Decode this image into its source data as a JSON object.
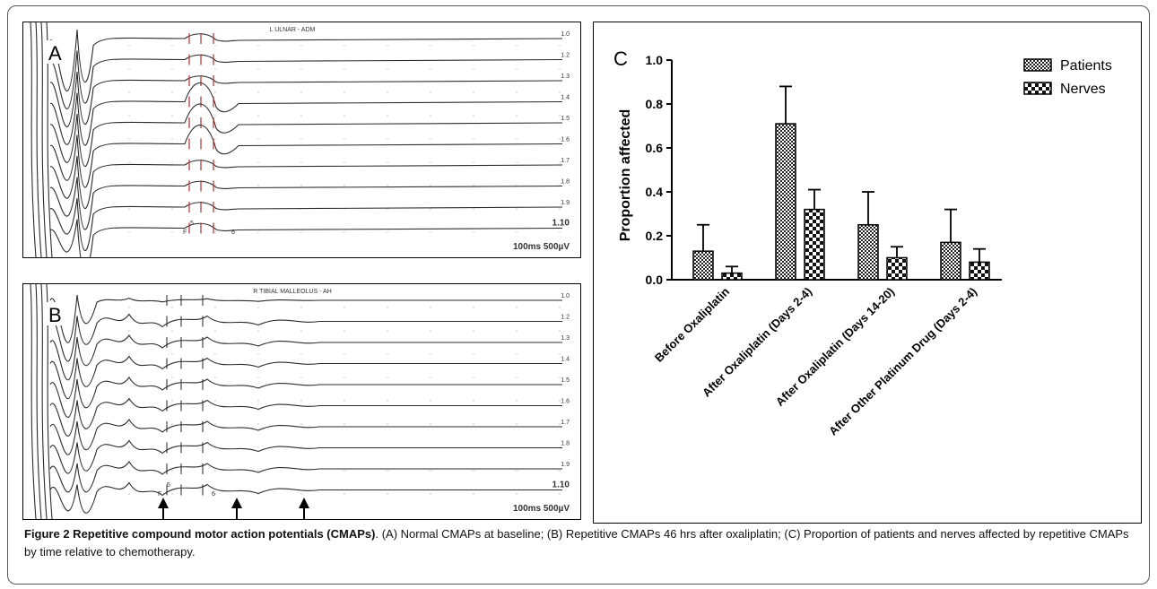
{
  "panel_a": {
    "letter": "A",
    "header": "L ULNAR - ADM",
    "trace_labels": [
      "1.0",
      "1.2",
      "1.3",
      "1.4",
      "1.5",
      "1.6",
      "1.7",
      "1.8",
      "1.9",
      "1.10"
    ],
    "scale": "100ms 500µV",
    "marker_labels": [
      "F",
      "5",
      "6"
    ]
  },
  "panel_b": {
    "letter": "B",
    "header": "R TIBIAL MALLEOLUS - AH",
    "trace_labels": [
      "1.0",
      "1.2",
      "1.3",
      "1.4",
      "1.5",
      "1.6",
      "1.7",
      "1.8",
      "1.9",
      "1.10"
    ],
    "scale": "100ms 500µV",
    "marker_labels": [
      "F",
      "5",
      "6"
    ]
  },
  "chart_data": {
    "type": "bar",
    "panel_letter": "C",
    "ylabel": "Proportion affected",
    "ylim": [
      0,
      1.0
    ],
    "yticks": [
      "0.0",
      "0.2",
      "0.4",
      "0.6",
      "0.8",
      "1.0"
    ],
    "categories": [
      "Before Oxaliplatin",
      "After Oxaliplatin (Days 2-4)",
      "After Oxaliplatin (Days 14-20)",
      "After Other Platinum Drug (Days 2-4)"
    ],
    "series": [
      {
        "name": "Patients",
        "values": [
          0.13,
          0.71,
          0.25,
          0.17
        ],
        "error": [
          0.12,
          0.17,
          0.15,
          0.15
        ]
      },
      {
        "name": "Nerves",
        "values": [
          0.03,
          0.32,
          0.1,
          0.08
        ],
        "error": [
          0.03,
          0.09,
          0.05,
          0.06
        ]
      }
    ],
    "legend_position": "top-right"
  },
  "caption": {
    "label": "Figure 2 Repetitive compound motor action potentials (CMAPs)",
    "text": ". (A) Normal CMAPs at baseline; (B) Repetitive CMAPs 46 hrs after oxaliplatin; (C) Proportion of patients and nerves affected by repetitive CMAPs by time relative to chemotherapy."
  }
}
